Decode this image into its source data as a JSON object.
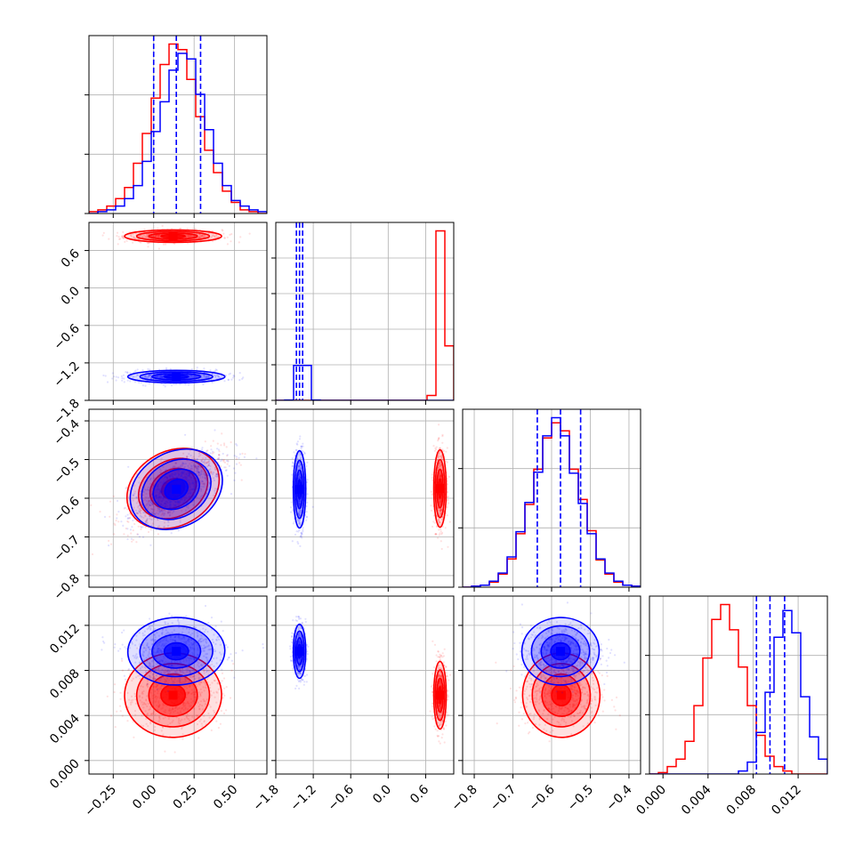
{
  "chart_data": {
    "type": "corner",
    "n_params": 4,
    "series": [
      {
        "name": "",
        "color": "#0000ff"
      },
      {
        "name": "",
        "color": "#ff0000"
      }
    ],
    "grid": true,
    "axes": {
      "p1": {
        "range": [
          -0.4,
          0.7
        ],
        "ticks": [
          -0.25,
          0.0,
          0.25,
          0.5
        ],
        "tick_labels": [
          "−0.25",
          "0.00",
          "0.25",
          "0.50"
        ]
      },
      "p2": {
        "range": [
          -1.8,
          1.05
        ],
        "ticks": [
          -1.8,
          -1.2,
          -0.6,
          0.0,
          0.6
        ],
        "tick_labels": [
          "−1.8",
          "−1.2",
          "−0.6",
          "0.0",
          "0.6"
        ]
      },
      "p3": {
        "range": [
          -0.83,
          -0.37
        ],
        "ticks": [
          -0.8,
          -0.7,
          -0.6,
          -0.5,
          -0.4
        ],
        "tick_labels": [
          "−0.8",
          "−0.7",
          "−0.6",
          "−0.5",
          "−0.4"
        ]
      },
      "p4": {
        "range": [
          -0.0012,
          0.0146
        ],
        "ticks": [
          0.0,
          0.004,
          0.008,
          0.012
        ],
        "tick_labels": [
          "0.000",
          "0.004",
          "0.008",
          "0.012"
        ]
      }
    },
    "quantiles": {
      "p1": [
        0.0,
        0.14,
        0.29
      ],
      "p2": [
        -1.47,
        -1.42,
        -1.37
      ],
      "p3": [
        -0.637,
        -0.577,
        -0.525
      ],
      "p4": [
        0.0083,
        0.0095,
        0.0108
      ]
    },
    "marginals": {
      "p1": {
        "bins": [
          -0.4,
          -0.345,
          -0.29,
          -0.235,
          -0.18,
          -0.125,
          -0.07,
          -0.015,
          0.04,
          0.095,
          0.15,
          0.205,
          0.26,
          0.315,
          0.37,
          0.425,
          0.48,
          0.535,
          0.59,
          0.645,
          0.7
        ],
        "blue": [
          0,
          1,
          2,
          4,
          8,
          15,
          28,
          44,
          60,
          77,
          86,
          83,
          64,
          45,
          27,
          15,
          7,
          4,
          2,
          1
        ],
        "red": [
          1,
          2,
          4,
          8,
          14,
          27,
          43,
          62,
          80,
          91,
          88,
          72,
          52,
          34,
          22,
          12,
          6,
          2,
          1,
          0
        ]
      },
      "p2": {
        "bins": [
          -1.8,
          -1.6575,
          -1.515,
          -1.3725,
          -1.23,
          -1.0875,
          -0.945,
          -0.8025,
          -0.66,
          -0.5175,
          -0.375,
          -0.2325,
          -0.09,
          0.0525,
          0.195,
          0.3375,
          0.48,
          0.6225,
          0.765,
          0.9075,
          1.05
        ],
        "blue": [
          0,
          1,
          100,
          100,
          1,
          0,
          0,
          0,
          0,
          0,
          0,
          0,
          0,
          0,
          0,
          0,
          0,
          0,
          0,
          0
        ],
        "red": [
          0,
          0,
          0,
          0,
          0,
          0,
          0,
          0,
          0,
          0,
          0,
          0,
          0,
          0,
          0,
          0,
          0,
          14,
          485,
          156
        ]
      },
      "p3": {
        "bins": [
          -0.83,
          -0.807,
          -0.784,
          -0.761,
          -0.738,
          -0.715,
          -0.692,
          -0.669,
          -0.646,
          -0.623,
          -0.6,
          -0.577,
          -0.554,
          -0.531,
          -0.508,
          -0.485,
          -0.462,
          -0.439,
          -0.416,
          -0.393,
          -0.37
        ],
        "blue": [
          0,
          1,
          2,
          6,
          14,
          30,
          55,
          84,
          114,
          150,
          168,
          150,
          113,
          83,
          53,
          28,
          14,
          6,
          2,
          1
        ],
        "red": [
          0,
          1,
          2,
          5,
          13,
          28,
          53,
          82,
          117,
          148,
          163,
          155,
          117,
          87,
          56,
          27,
          13,
          5,
          2,
          1
        ]
      },
      "p4": {
        "bins": [
          -0.0012,
          -0.00041,
          0.00038,
          0.00117,
          0.00196,
          0.00275,
          0.00354,
          0.00433,
          0.00512,
          0.00591,
          0.0067,
          0.00749,
          0.00828,
          0.00907,
          0.00986,
          0.01065,
          0.01144,
          0.01223,
          0.01302,
          0.01381,
          0.0146
        ],
        "blue": [
          0,
          0,
          0,
          0,
          0,
          0,
          0,
          0,
          0,
          0,
          2,
          8,
          28,
          55,
          92,
          110,
          95,
          52,
          25,
          10
        ],
        "red": [
          0,
          1,
          5,
          10,
          22,
          46,
          78,
          104,
          114,
          97,
          72,
          46,
          26,
          12,
          5,
          2,
          0,
          0,
          0,
          0
        ]
      }
    },
    "posteriors": {
      "blue": {
        "mean": [
          0.14,
          -1.42,
          -0.577,
          0.0097
        ],
        "sd": [
          0.15,
          0.05,
          0.05,
          0.0012
        ]
      },
      "red": {
        "mean": [
          0.12,
          0.83,
          -0.575,
          0.0058
        ],
        "sd": [
          0.15,
          0.05,
          0.05,
          0.0015
        ]
      }
    }
  }
}
